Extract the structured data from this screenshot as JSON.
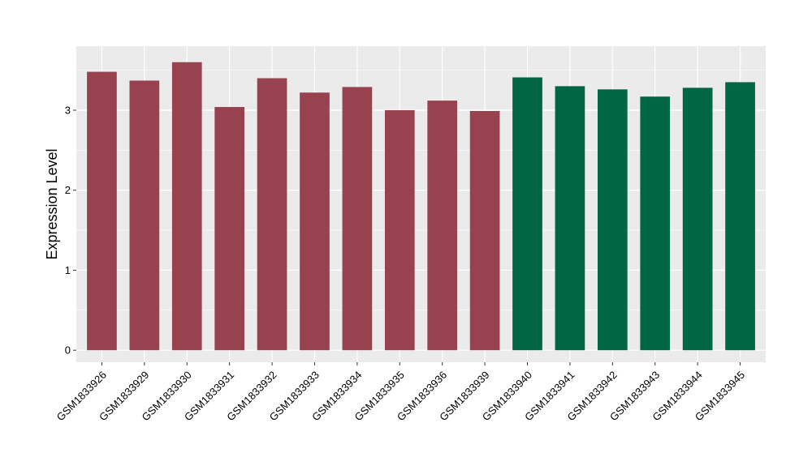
{
  "chart_data": {
    "type": "bar",
    "title": "",
    "xlabel": "",
    "ylabel": "Expression Level",
    "ylim": [
      -0.15,
      3.8
    ],
    "yticks": [
      0,
      1,
      2,
      3
    ],
    "grid": true,
    "legend": "none",
    "categories": [
      "GSM1833926",
      "GSM1833929",
      "GSM1833930",
      "GSM1833931",
      "GSM1833932",
      "GSM1833933",
      "GSM1833934",
      "GSM1833935",
      "GSM1833936",
      "GSM1833939",
      "GSM1833940",
      "GSM1833941",
      "GSM1833942",
      "GSM1833943",
      "GSM1833944",
      "GSM1833945"
    ],
    "values": [
      3.48,
      3.37,
      3.6,
      3.04,
      3.4,
      3.22,
      3.29,
      3.0,
      3.12,
      2.99,
      3.41,
      3.3,
      3.26,
      3.17,
      3.28,
      3.35
    ],
    "group_index": [
      0,
      0,
      0,
      0,
      0,
      0,
      0,
      0,
      0,
      0,
      1,
      1,
      1,
      1,
      1,
      1
    ],
    "colors": [
      "#98424F",
      "#006643"
    ],
    "panel_background": "#EBEBEB",
    "grid_color": "#FFFFFF"
  }
}
